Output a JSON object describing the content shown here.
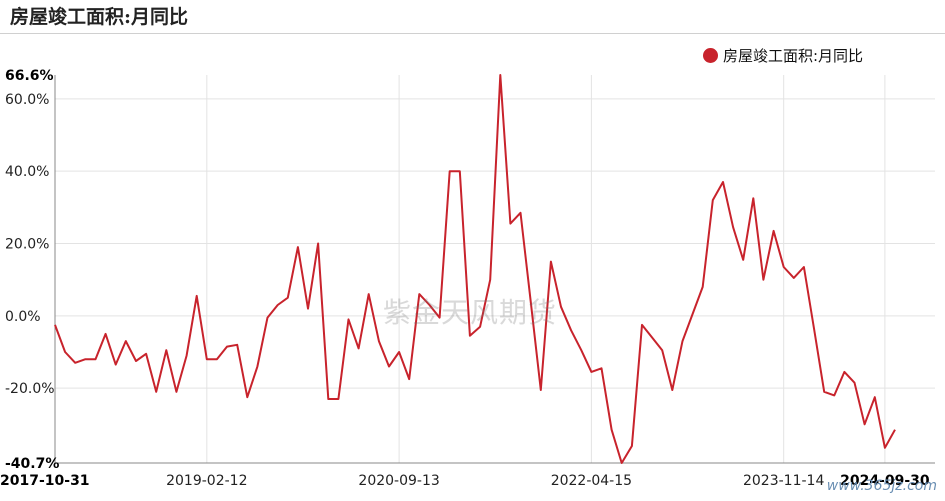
{
  "header": {
    "title": "房屋竣工面积:月同比"
  },
  "watermark": "紫金天风期货",
  "site_mark": "www.365jz.com",
  "colors": {
    "series": "#c8232c",
    "grid": "#e3e3e3",
    "axis": "#888888"
  },
  "chart_data": {
    "type": "line",
    "title": "房屋竣工面积:月同比",
    "xlabel": "",
    "ylabel": "",
    "ylim": [
      -40.7,
      66.6
    ],
    "y_ticks": [
      {
        "value": 66.6,
        "label": "66.6%",
        "bold": true
      },
      {
        "value": 60,
        "label": "60.0%",
        "bold": false
      },
      {
        "value": 40,
        "label": "40.0%",
        "bold": false
      },
      {
        "value": 20,
        "label": "20.0%",
        "bold": false
      },
      {
        "value": 0,
        "label": "0.0%",
        "bold": false
      },
      {
        "value": -20,
        "label": "-20.0%",
        "bold": false
      },
      {
        "value": -40.7,
        "label": "-40.7%",
        "bold": true
      }
    ],
    "x_ticks": [
      {
        "index": 0,
        "label": "2017-10-31",
        "bold": true
      },
      {
        "index": 15,
        "label": "2019-02-12",
        "bold": false
      },
      {
        "index": 34,
        "label": "2020-09-13",
        "bold": false
      },
      {
        "index": 53,
        "label": "2022-04-15",
        "bold": false
      },
      {
        "index": 72,
        "label": "2023-11-14",
        "bold": false
      },
      {
        "index": 82,
        "label": "2024-09-30",
        "bold": true
      }
    ],
    "grid": true,
    "legend": "top-right",
    "series": [
      {
        "name": "房屋竣工面积:月同比",
        "color": "#c8232c",
        "values": [
          -2.5,
          -10,
          -13,
          -12,
          -12,
          -5,
          -13.5,
          -7,
          -12.5,
          -10.5,
          -21,
          -9.5,
          -21,
          -11,
          5.5,
          -12,
          -12,
          -8.5,
          -8,
          -22.5,
          -14,
          -0.5,
          3,
          5,
          19,
          2,
          20,
          -23,
          -23,
          -1,
          -9,
          6,
          -7,
          -14,
          -10,
          -17.5,
          6,
          3,
          -0.5,
          40,
          40,
          -5.5,
          -3,
          10,
          66.6,
          25.5,
          28.5,
          4,
          -20.5,
          15,
          2.5,
          -4,
          -9.5,
          -15.5,
          -14.5,
          -31.5,
          -40.7,
          -36,
          -2.5,
          -6,
          -9.5,
          -20.5,
          -7,
          0.5,
          8,
          32,
          37,
          24.5,
          15.5,
          32.5,
          10,
          23.5,
          13.5,
          10.5,
          13.5,
          -3.5,
          -21,
          -22,
          -15.5,
          -18.5,
          -30,
          -22.5,
          -36.5,
          -31.5
        ]
      }
    ]
  }
}
